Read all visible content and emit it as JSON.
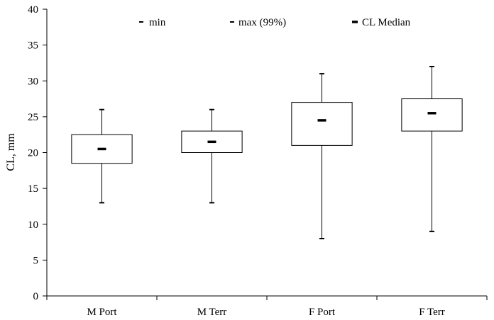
{
  "chart_data": {
    "type": "box",
    "title": "",
    "xlabel": "",
    "ylabel": "CL, mm",
    "ylim": [
      0,
      40
    ],
    "yticks": [
      0,
      5,
      10,
      15,
      20,
      25,
      30,
      35,
      40
    ],
    "grid": false,
    "legend_position": "top",
    "legend": {
      "min_label": "min",
      "max_label": "max (99%)",
      "median_label": "CL Median"
    },
    "categories": [
      "M Port",
      "M Terr",
      "F Port",
      "F Terr"
    ],
    "series": [
      {
        "min": 13,
        "q1": 18.5,
        "median": 20.5,
        "q3": 22.5,
        "max": 26
      },
      {
        "min": 13,
        "q1": 20,
        "median": 21.5,
        "q3": 23,
        "max": 26
      },
      {
        "min": 8,
        "q1": 21,
        "median": 24.5,
        "q3": 27,
        "max": 31
      },
      {
        "min": 9,
        "q1": 23,
        "median": 25.5,
        "q3": 27.5,
        "max": 32
      }
    ]
  }
}
